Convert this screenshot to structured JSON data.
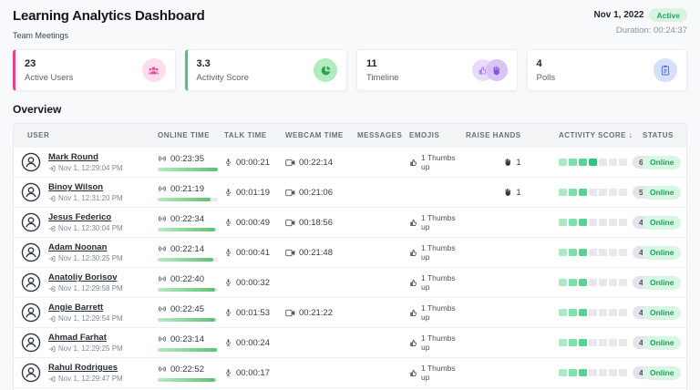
{
  "header": {
    "title": "Learning Analytics Dashboard",
    "subtitle": "Team Meetings",
    "date": "Nov 1, 2022",
    "status_badge": "Active",
    "duration": "Duration: 00:24:37"
  },
  "colors": {
    "accent_pink": "#e8418c",
    "accent_green": "#57c06c",
    "pink_icon_bg": "#fbddeb",
    "pink_icon": "#e5509c",
    "green_icon_bg": "#b2ecbe",
    "green_icon": "#2f9e51",
    "purple_icon_bg_1": "#e9dcfa",
    "purple_icon_1": "#a678f2",
    "purple_icon_bg_2": "#d9c4f6",
    "purple_icon_2": "#8b51ea",
    "blue_icon_bg": "#d6e0f8",
    "blue_icon": "#4d71dd",
    "active_badge_bg": "#d8f3df",
    "active_badge_text": "#27a567",
    "online_badge_bg": "#d9f6e4",
    "online_badge_text": "#1ea15c",
    "bar_track": "#e8eaee",
    "bar_gradient_start": "#b7ebc3",
    "bar_gradient_end": "#5fc077",
    "segment_palette": [
      "#aae9c2",
      "#7fdfaa",
      "#54d392",
      "#30c47e",
      "#1fb571",
      "#14a463",
      "#0c9257"
    ],
    "segment_empty": "#e6e8ec"
  },
  "cards": [
    {
      "value": "23",
      "label": "Active Users",
      "icon": "users-icon"
    },
    {
      "value": "3.3",
      "label": "Activity Score",
      "icon": "pie-chart-icon"
    },
    {
      "value": "11",
      "label": "Timeline",
      "icon": "thumbs-up-and-raise-hand-icons"
    },
    {
      "value": "4",
      "label": "Polls",
      "icon": "clipboard-icon"
    }
  ],
  "overview": {
    "title": "Overview",
    "columns": [
      "USER",
      "ONLINE TIME",
      "TALK TIME",
      "WEBCAM TIME",
      "MESSAGES",
      "EMOJIS",
      "RAISE HANDS",
      "ACTIVITY SCORE",
      "STATUS"
    ],
    "sort_column": "ACTIVITY SCORE",
    "sort_indicator": "↓",
    "segment_count": 7,
    "rows": [
      {
        "name": "Mark Round",
        "joined": "Nov 1, 12:29:04 PM",
        "online_time": "00:23:35",
        "online_pct": 100,
        "talk_time": "00:00:21",
        "webcam_time": "00:22:14",
        "messages": "",
        "emojis": "1 Thumbs up",
        "raise_hands": "1",
        "score": "6.4",
        "score_filled": 4,
        "status": "Online"
      },
      {
        "name": "Binoy Wilson",
        "joined": "Nov 1, 12:31:20 PM",
        "online_time": "00:21:19",
        "online_pct": 88,
        "talk_time": "00:01:19",
        "webcam_time": "00:21:06",
        "messages": "",
        "emojis": "",
        "raise_hands": "1",
        "score": "5.4",
        "score_filled": 3,
        "status": "Online"
      },
      {
        "name": "Jesus Federico",
        "joined": "Nov 1, 12:30:04 PM",
        "online_time": "00:22:34",
        "online_pct": 95,
        "talk_time": "00:00:49",
        "webcam_time": "00:18:56",
        "messages": "",
        "emojis": "1 Thumbs up",
        "raise_hands": "",
        "score": "4.9",
        "score_filled": 3,
        "status": "Online"
      },
      {
        "name": "Adam Noonan",
        "joined": "Nov 1, 12:30:25 PM",
        "online_time": "00:22:14",
        "online_pct": 93,
        "talk_time": "00:00:41",
        "webcam_time": "00:21:48",
        "messages": "",
        "emojis": "1 Thumbs up",
        "raise_hands": "",
        "score": "4.7",
        "score_filled": 3,
        "status": "Online"
      },
      {
        "name": "Anatoliy Borisov",
        "joined": "Nov 1, 12:29:58 PM",
        "online_time": "00:22:40",
        "online_pct": 95,
        "talk_time": "00:00:32",
        "webcam_time": "",
        "messages": "",
        "emojis": "1 Thumbs up",
        "raise_hands": "",
        "score": "4.6",
        "score_filled": 3,
        "status": "Online"
      },
      {
        "name": "Angie Barrett",
        "joined": "Nov 1, 12:29:54 PM",
        "online_time": "00:22:45",
        "online_pct": 96,
        "talk_time": "00:01:53",
        "webcam_time": "00:21:22",
        "messages": "",
        "emojis": "1 Thumbs up",
        "raise_hands": "",
        "score": "4.5",
        "score_filled": 3,
        "status": "Online"
      },
      {
        "name": "Ahmad Farhat",
        "joined": "Nov 1, 12:29:25 PM",
        "online_time": "00:23:14",
        "online_pct": 98,
        "talk_time": "00:00:24",
        "webcam_time": "",
        "messages": "",
        "emojis": "1 Thumbs up",
        "raise_hands": "",
        "score": "4.4",
        "score_filled": 3,
        "status": "Online"
      },
      {
        "name": "Rahul Rodrigues",
        "joined": "Nov 1, 12:29:47 PM",
        "online_time": "00:22:52",
        "online_pct": 96,
        "talk_time": "00:00:17",
        "webcam_time": "",
        "messages": "",
        "emojis": "1 Thumbs up",
        "raise_hands": "",
        "score": "4.3",
        "score_filled": 3,
        "status": "Online"
      }
    ]
  }
}
